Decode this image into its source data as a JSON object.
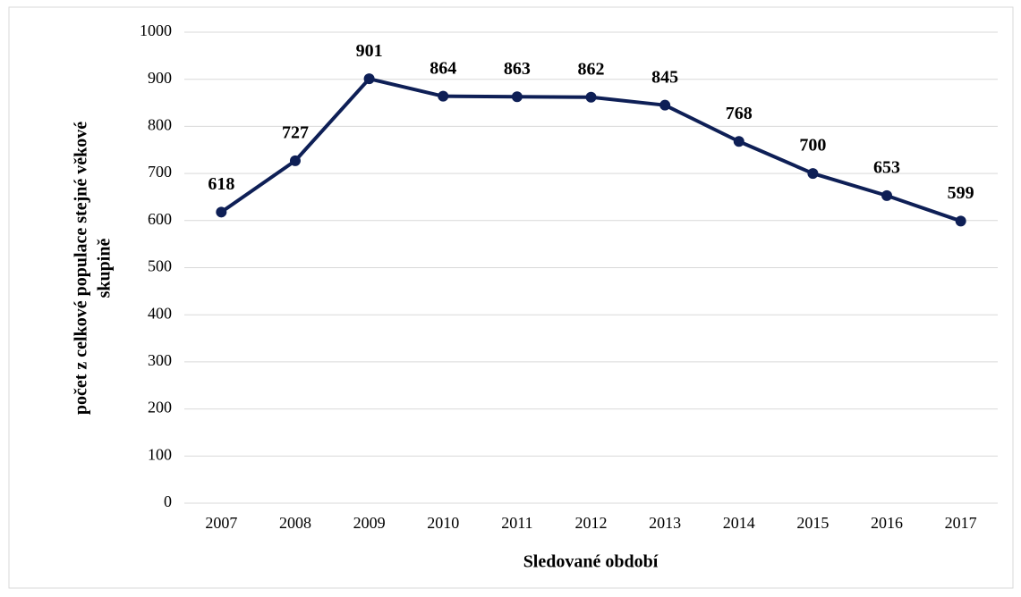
{
  "chart_data": {
    "type": "line",
    "ylabel": [
      "počet z celkové populace stejné  věkové",
      "skupině"
    ],
    "xlabel": "Sledované období",
    "categories": [
      "2007",
      "2008",
      "2009",
      "2010",
      "2011",
      "2012",
      "2013",
      "2014",
      "2015",
      "2016",
      "2017"
    ],
    "values": [
      618,
      727,
      901,
      864,
      863,
      862,
      845,
      768,
      700,
      653,
      599
    ],
    "color": "#0e1f56",
    "ylim": [
      0,
      1000
    ],
    "yticks": [
      0,
      100,
      200,
      300,
      400,
      500,
      600,
      700,
      800,
      900,
      1000
    ],
    "grid": true
  }
}
